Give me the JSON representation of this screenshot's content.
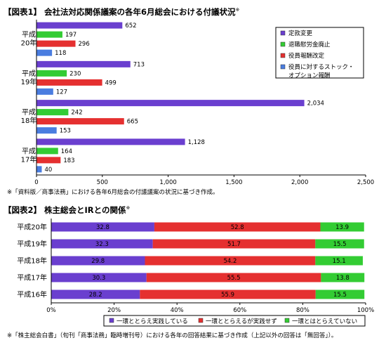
{
  "chart1": {
    "title": "【図表1】 会社法対応関係議案の各年6月総会における付議状況",
    "title_mark": "※",
    "note": "※「資料版／商事法務」における各年6月総会の付議議案の状況に基づき作成。",
    "chart_data": {
      "type": "bar",
      "orientation": "horizontal",
      "categories": [
        "平成\n20年",
        "平成\n19年",
        "平成\n18年",
        "平成\n17年"
      ],
      "series": [
        {
          "name": "定款変更",
          "color": "#6a3fcf",
          "values": [
            652,
            713,
            2034,
            1128
          ],
          "labels": [
            "652",
            "713",
            "2,034",
            "1,128"
          ]
        },
        {
          "name": "退職慰労金廃止",
          "color": "#33cc33",
          "values": [
            197,
            230,
            242,
            164
          ],
          "labels": [
            "197",
            "230",
            "242",
            "164"
          ]
        },
        {
          "name": "役員報酬改定",
          "color": "#e53030",
          "values": [
            296,
            499,
            665,
            183
          ],
          "labels": [
            "296",
            "499",
            "665",
            "183"
          ]
        },
        {
          "name": "役員に対するストック・\nオプション報酬",
          "color": "#4a7de0",
          "values": [
            118,
            127,
            153,
            40
          ],
          "labels": [
            "118",
            "127",
            "153",
            "40"
          ]
        }
      ],
      "xlim": [
        0,
        2500
      ],
      "xticks": [
        0,
        500,
        1000,
        1500,
        2000,
        2500
      ],
      "xtick_labels": [
        "0",
        "500",
        "1,000",
        "1,500",
        "2,000",
        "2,500"
      ],
      "grid": false,
      "legend_position": "top-right"
    }
  },
  "chart2": {
    "title": "【図表2】 株主総会とIRとの関係",
    "title_mark": "※",
    "note": "※「株主総会白書」（旬刊「商事法務」臨時増刊号）における各年の回答結果に基づき作成（上記以外の回答は「無回答」）。",
    "chart_data": {
      "type": "bar",
      "orientation": "horizontal",
      "stacked": true,
      "categories": [
        "平成20年",
        "平成19年",
        "平成18年",
        "平成17年",
        "平成16年"
      ],
      "series": [
        {
          "name": "一環ととらえ実践している",
          "color": "#6a3fcf",
          "values": [
            32.8,
            32.3,
            29.8,
            30.3,
            28.2
          ]
        },
        {
          "name": "一環ととらえるが実践せず",
          "color": "#e53030",
          "values": [
            52.8,
            51.7,
            54.2,
            55.5,
            55.9
          ]
        },
        {
          "name": "一環とはとらえていない",
          "color": "#33cc33",
          "values": [
            13.9,
            15.5,
            15.1,
            13.8,
            15.5
          ]
        }
      ],
      "xlim": [
        0,
        100
      ],
      "xticks": [
        0,
        20,
        40,
        60,
        80,
        100
      ],
      "xtick_labels": [
        "0%",
        "20%",
        "40%",
        "60%",
        "80%",
        "100%"
      ],
      "grid": false,
      "legend_position": "bottom"
    }
  }
}
